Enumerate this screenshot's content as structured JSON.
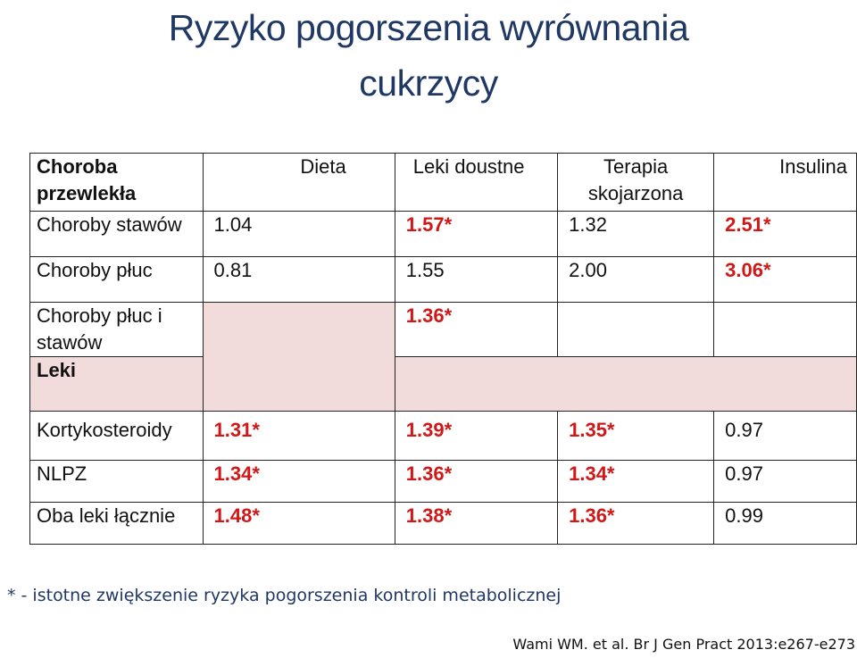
{
  "title": {
    "line1": "Ryzyko pogorszenia wyrównania",
    "line2": "cukrzycy"
  },
  "table": {
    "header": {
      "row_label_line1": "Choroba",
      "row_label_line2": "przewlekła",
      "columns": [
        "Dieta",
        "Leki doustne",
        "Terapia skojarzona",
        "Insulina"
      ],
      "col3_line1": "Terapia",
      "col3_line2": "skojarzona"
    },
    "rows": [
      {
        "label": "Choroby stawów",
        "values": [
          "1.04",
          "1.57*",
          "1.32",
          "2.51*"
        ]
      },
      {
        "label": "Choroby płuc",
        "values": [
          "0.81",
          "1.55",
          "2.00",
          "3.06*"
        ]
      },
      {
        "label_line1": "Choroby płuc i",
        "label_line2": "stawów",
        "values": [
          "",
          "1.36*",
          "",
          ""
        ]
      }
    ],
    "section_label": "Leki",
    "drug_rows": [
      {
        "label": "Kortykosteroidy",
        "values": [
          "1.31*",
          "1.39*",
          "1.35*",
          "0.97"
        ]
      },
      {
        "label": "NLPZ",
        "values": [
          "1.34*",
          "1.36*",
          "1.34*",
          "0.97"
        ]
      },
      {
        "label": "Oba leki łącznie",
        "values": [
          "1.48*",
          "1.38*",
          "1.36*",
          "0.99"
        ]
      }
    ]
  },
  "footnote": "* - istotne zwiększenie ryzyka pogorszenia kontroli metabolicznej",
  "citation": "Wami WM. et al. Br J Gen Pract 2013:e267-e273",
  "colors": {
    "title": "#1f3864",
    "significant": "#d01818",
    "shade": "#f2dcdb"
  }
}
